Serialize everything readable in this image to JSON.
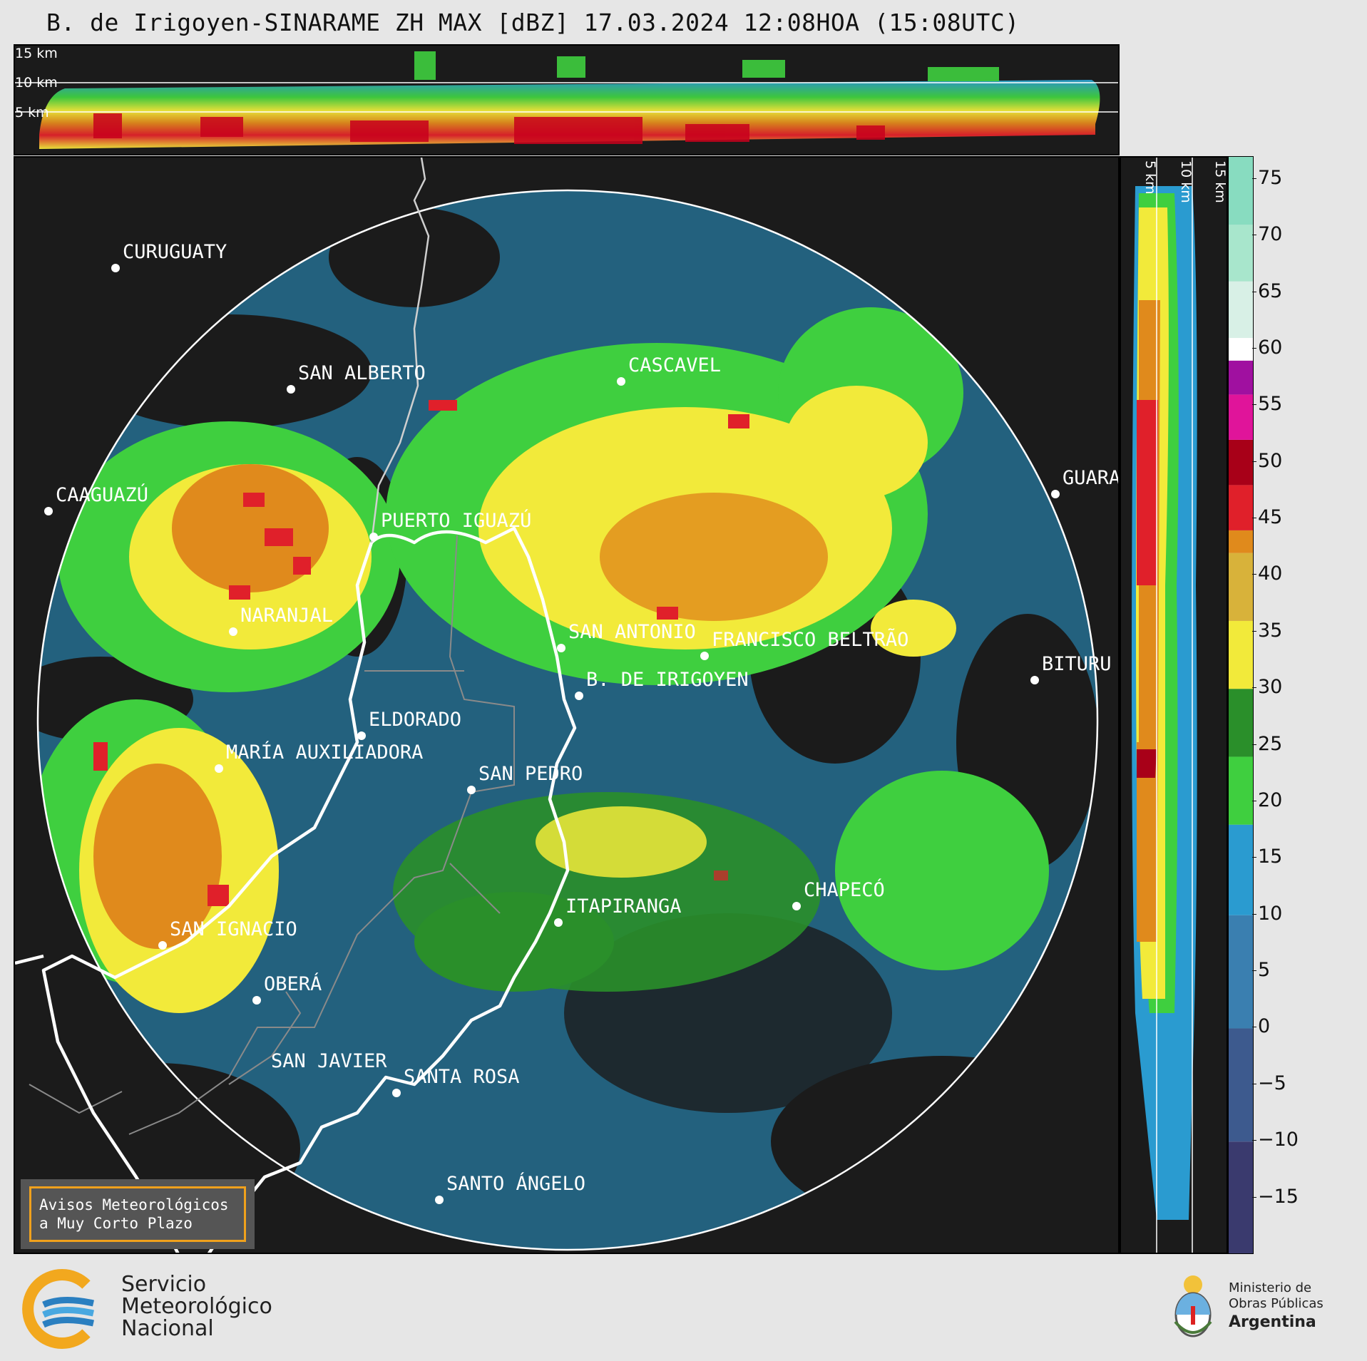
{
  "title": "B. de Irigoyen-SINARAME ZH MAX [dBZ] 17.03.2024 12:08HOA (15:08UTC)",
  "top_panel": {
    "km_labels": [
      "15 km",
      "10 km",
      "5 km"
    ]
  },
  "side_panel": {
    "km_labels": [
      "5 km",
      "10 km",
      "15 km"
    ]
  },
  "colorbar": {
    "ticks": [
      "75",
      "70",
      "65",
      "60",
      "55",
      "50",
      "45",
      "40",
      "35",
      "30",
      "25",
      "20",
      "15",
      "10",
      "5",
      "0",
      "−5",
      "−10",
      "−15"
    ],
    "min": -20,
    "max": 77,
    "stops": [
      {
        "from": -20,
        "color": "#3a3a6e"
      },
      {
        "from": -10,
        "color": "#3d5a8e"
      },
      {
        "from": 0,
        "color": "#3a7fb0"
      },
      {
        "from": 10,
        "color": "#2a9bd0"
      },
      {
        "from": 18,
        "color": "#3fcf3f"
      },
      {
        "from": 24,
        "color": "#2a8f2a"
      },
      {
        "from": 30,
        "color": "#f2ea3a"
      },
      {
        "from": 36,
        "color": "#d8b23a"
      },
      {
        "from": 42,
        "color": "#e08a1c"
      },
      {
        "from": 44,
        "color": "#e0202a"
      },
      {
        "from": 48,
        "color": "#a80018"
      },
      {
        "from": 52,
        "color": "#e0149a"
      },
      {
        "from": 56,
        "color": "#a010a0"
      },
      {
        "from": 59,
        "color": "#ffffff"
      },
      {
        "from": 61,
        "color": "#d8f0e6"
      },
      {
        "from": 66,
        "color": "#a8e6cc"
      },
      {
        "from": 71,
        "color": "#88dcc0"
      }
    ]
  },
  "cities": [
    {
      "name": "CURUGUATY"
    },
    {
      "name": "SAN ALBERTO"
    },
    {
      "name": "CASCAVEL"
    },
    {
      "name": "CAAGUAZÚ"
    },
    {
      "name": "PUERTO IGUAZÚ"
    },
    {
      "name": "GUARA"
    },
    {
      "name": "NARANJAL"
    },
    {
      "name": "SAN ANTONIO"
    },
    {
      "name": "FRANCISCO BELTRÃO"
    },
    {
      "name": "BITURU"
    },
    {
      "name": "B. DE IRIGOYEN"
    },
    {
      "name": "ELDORADO"
    },
    {
      "name": "MARÍA AUXILIADORA"
    },
    {
      "name": "SAN PEDRO"
    },
    {
      "name": "CHAPECÓ"
    },
    {
      "name": "ITAPIRANGA"
    },
    {
      "name": "SAN IGNACIO"
    },
    {
      "name": "OBERÁ"
    },
    {
      "name": "SAN JAVIER"
    },
    {
      "name": "SANTA ROSA"
    },
    {
      "name": "SANTO ÁNGELO"
    }
  ],
  "avisos": {
    "line1": "Avisos Meteorológicos",
    "line2": "a Muy Corto Plazo"
  },
  "smn_logo": {
    "line1": "Servicio",
    "line2": "Meteorológico",
    "line3": "Nacional"
  },
  "ministry_logo": {
    "line1": "Ministerio de",
    "line2": "Obras Públicas",
    "line3": "Argentina"
  },
  "colors": {
    "background": "#e6e6e6",
    "panel": "#1b1b1b",
    "range_ring": "#ffffff",
    "border_line": "#ffffff",
    "state_line": "#8a8a8a"
  },
  "icons": {
    "smn": "smn-swirl-logo",
    "ministry": "argentina-coat-of-arms"
  }
}
